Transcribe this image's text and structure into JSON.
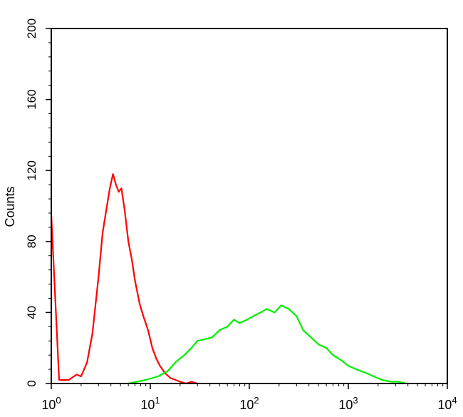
{
  "chart_data": {
    "type": "line",
    "title": "",
    "xlabel": "",
    "ylabel": "Counts",
    "x_scale": "log",
    "xlim": [
      1,
      10000
    ],
    "ylim": [
      0,
      200
    ],
    "y_ticks": [
      0,
      40,
      80,
      120,
      160,
      200
    ],
    "x_ticks": [
      1,
      10,
      100,
      1000,
      10000
    ],
    "x_tick_labels": [
      {
        "base": "10",
        "exp": "0"
      },
      {
        "base": "10",
        "exp": "1"
      },
      {
        "base": "10",
        "exp": "2"
      },
      {
        "base": "10",
        "exp": "3"
      },
      {
        "base": "10",
        "exp": "4"
      }
    ],
    "grid": false,
    "series": [
      {
        "color": "#ff0000",
        "x": [
          1.0,
          1.2,
          1.5,
          1.8,
          2.0,
          2.3,
          2.6,
          3.0,
          3.3,
          3.6,
          3.9,
          4.2,
          4.5,
          4.8,
          5.1,
          5.5,
          6.0,
          6.5,
          7.0,
          7.8,
          8.5,
          9.5,
          10.5,
          11.5,
          12.5,
          14.0,
          16.0,
          18.0,
          20.0,
          23.0,
          26.0,
          30.0
        ],
        "y": [
          95,
          2,
          2,
          5,
          4,
          12,
          28,
          60,
          85,
          98,
          110,
          118,
          112,
          108,
          110,
          98,
          80,
          70,
          58,
          45,
          38,
          30,
          20,
          14,
          10,
          6,
          3,
          2,
          1,
          0,
          1,
          0
        ]
      },
      {
        "color": "#00ee00",
        "x": [
          6.0,
          9.0,
          12.0,
          15.0,
          18.0,
          22.0,
          26.0,
          30.0,
          36.0,
          42.0,
          50.0,
          60.0,
          70.0,
          80.0,
          95.0,
          110.0,
          130.0,
          150.0,
          180.0,
          210.0,
          250.0,
          300.0,
          350.0,
          420.0,
          500.0,
          600.0,
          700.0,
          850.0,
          1000.0,
          1200.0,
          1500.0,
          1800.0,
          2200.0,
          2700.0,
          3200.0,
          3800.0
        ],
        "y": [
          0,
          2,
          4,
          7,
          12,
          16,
          20,
          24,
          25,
          26,
          30,
          32,
          36,
          34,
          36,
          38,
          40,
          42,
          40,
          44,
          42,
          38,
          30,
          26,
          22,
          20,
          16,
          13,
          10,
          8,
          6,
          4,
          2,
          1,
          1,
          0
        ]
      }
    ]
  }
}
